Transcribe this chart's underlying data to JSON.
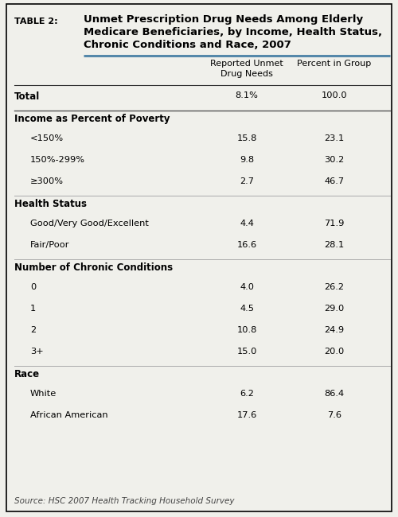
{
  "table_label": "TABLE 2:",
  "title_line1": "Unmet Prescription Drug Needs Among Elderly",
  "title_line2": "Medicare Beneficiaries, by Income, Health Status,",
  "title_line3": "Chronic Conditions and Race, 2007",
  "col1_header_line1": "Reported Unmet",
  "col1_header_line2": "Drug Needs",
  "col2_header": "Percent in Group",
  "rows": [
    {
      "label": "Total",
      "val1": "8.1%",
      "val2": "100.0",
      "style": "total",
      "indent": 0
    },
    {
      "label": "Income as Percent of Poverty",
      "val1": "",
      "val2": "",
      "style": "section",
      "indent": 0
    },
    {
      "label": "<150%",
      "val1": "15.8",
      "val2": "23.1",
      "style": "data",
      "indent": 1
    },
    {
      "label": "150%-299%",
      "val1": "9.8",
      "val2": "30.2",
      "style": "data",
      "indent": 1
    },
    {
      "label": "≥300%",
      "val1": "2.7",
      "val2": "46.7",
      "style": "data",
      "indent": 1
    },
    {
      "label": "Health Status",
      "val1": "",
      "val2": "",
      "style": "section",
      "indent": 0
    },
    {
      "label": "Good/Very Good/Excellent",
      "val1": "4.4",
      "val2": "71.9",
      "style": "data",
      "indent": 1
    },
    {
      "label": "Fair/Poor",
      "val1": "16.6",
      "val2": "28.1",
      "style": "data",
      "indent": 1
    },
    {
      "label": "Number of Chronic Conditions",
      "val1": "",
      "val2": "",
      "style": "section",
      "indent": 0
    },
    {
      "label": "0",
      "val1": "4.0",
      "val2": "26.2",
      "style": "data",
      "indent": 1
    },
    {
      "label": "1",
      "val1": "4.5",
      "val2": "29.0",
      "style": "data",
      "indent": 1
    },
    {
      "label": "2",
      "val1": "10.8",
      "val2": "24.9",
      "style": "data",
      "indent": 1
    },
    {
      "label": "3+",
      "val1": "15.0",
      "val2": "20.0",
      "style": "data",
      "indent": 1
    },
    {
      "label": "Race",
      "val1": "",
      "val2": "",
      "style": "section",
      "indent": 0
    },
    {
      "label": "White",
      "val1": "6.2",
      "val2": "86.4",
      "style": "data",
      "indent": 1
    },
    {
      "label": "African American",
      "val1": "17.6",
      "val2": "7.6",
      "style": "data",
      "indent": 1
    }
  ],
  "source": "Source: HSC 2007 Health Tracking Household Survey",
  "bg_color": "#f0f0eb",
  "border_color": "#000000",
  "accent_color": "#5588aa",
  "section_divider_color": "#aaaaaa",
  "total_divider_color": "#555555"
}
